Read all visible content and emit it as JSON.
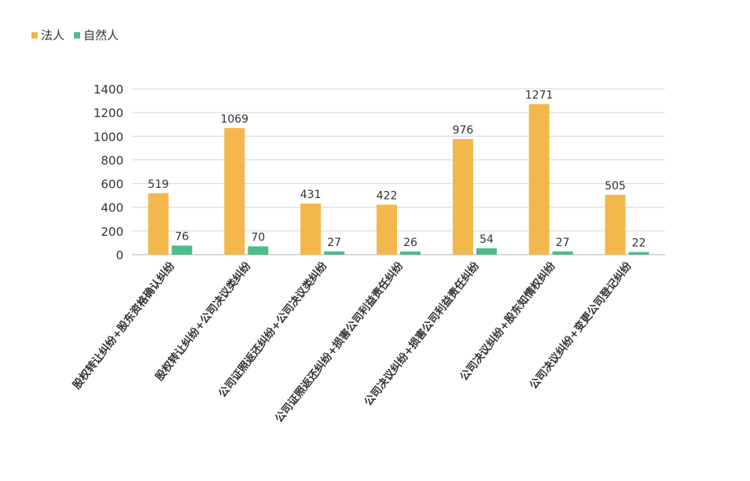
{
  "chart_data": {
    "type": "bar",
    "title": "",
    "xlabel": "",
    "ylabel": "",
    "ylim": [
      0,
      1400
    ],
    "yticks": [
      0,
      200,
      400,
      600,
      800,
      1000,
      1200,
      1400
    ],
    "grid": true,
    "legend_position": "top-left",
    "categories": [
      "股权转让纠纷+股东资格确认纠纷",
      "股权转让纠纷+公司决议类纠纷",
      "公司证照返还纠纷+公司决议类纠纷",
      "公司证照返还纠纷+损害公司利益责任纠纷",
      "公司决议纠纷+损害公司利益责任纠纷",
      "公司决议纠纷+股东知情权纠纷",
      "公司决议纠纷+变更公司登记纠纷"
    ],
    "series": [
      {
        "name": "法人",
        "color": "#F2B84B",
        "values": [
          519,
          1069,
          431,
          422,
          976,
          1271,
          505
        ]
      },
      {
        "name": "自然人",
        "color": "#4DBB8A",
        "values": [
          76,
          70,
          27,
          26,
          54,
          27,
          22
        ]
      }
    ]
  }
}
